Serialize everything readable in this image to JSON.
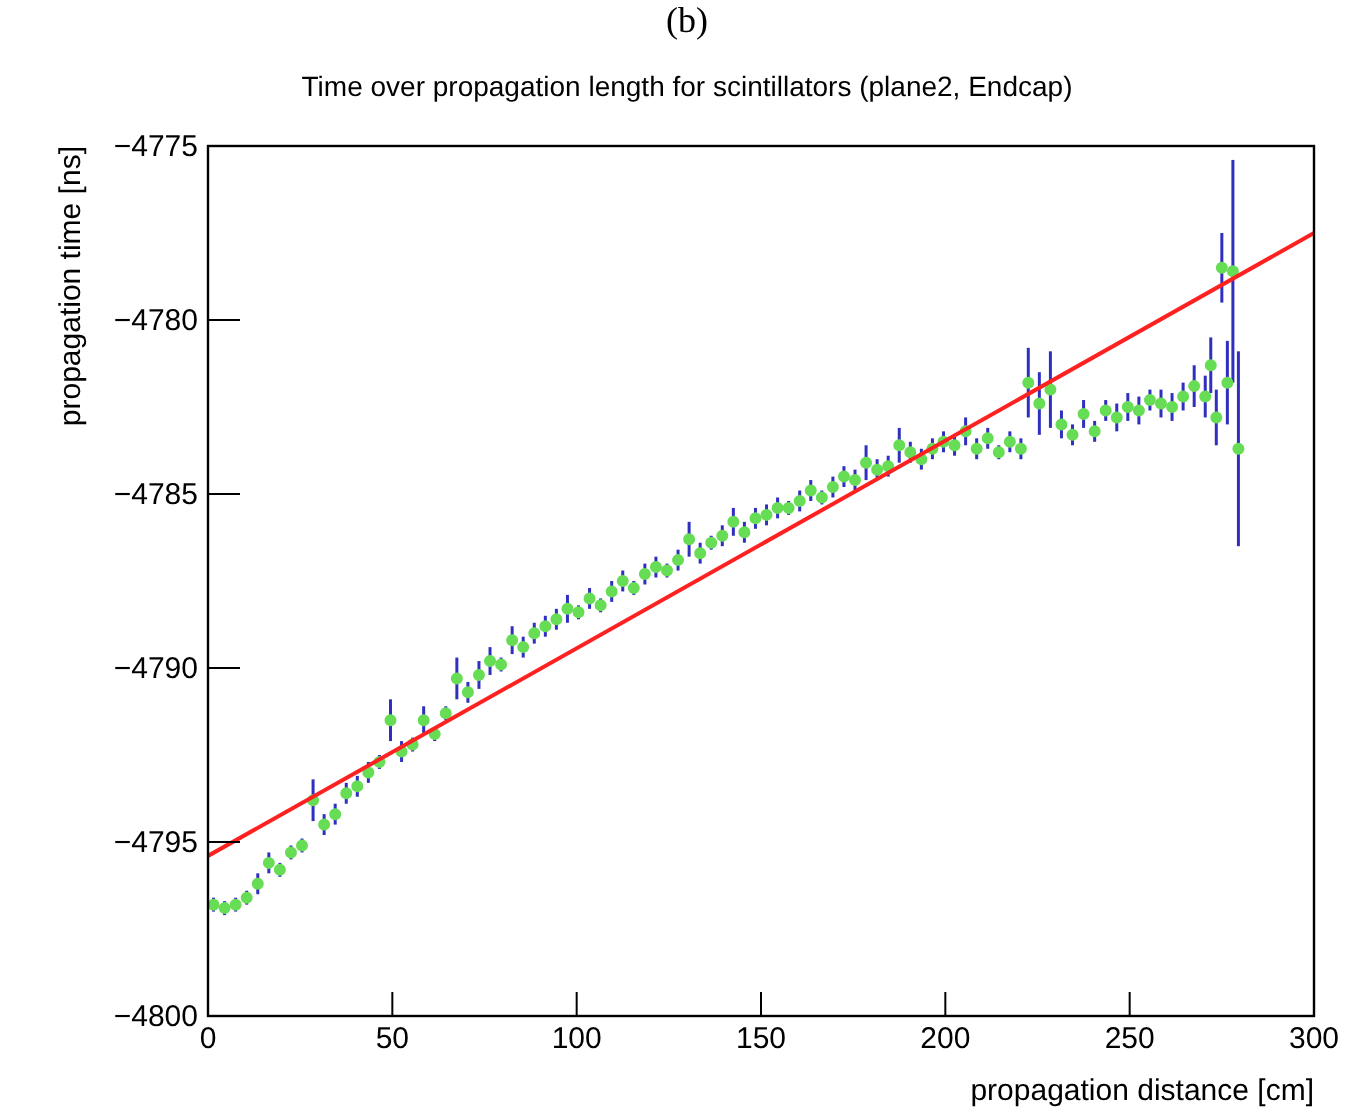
{
  "chart_data": {
    "type": "scatter",
    "title": "Time over propagation length for scintillators (plane2, Endcap)",
    "xlabel": "propagation distance [cm]",
    "ylabel": "propagation time [ns]",
    "annotations": [
      "(b)"
    ],
    "xlim": [
      0,
      300
    ],
    "ylim": [
      -4800,
      -4775
    ],
    "xticks": [
      0,
      50,
      100,
      150,
      200,
      250,
      300
    ],
    "yticks": [
      -4800,
      -4795,
      -4790,
      -4785,
      -4780,
      -4775
    ],
    "grid": false,
    "series": [
      {
        "marker": "circle",
        "color": "#66dd55",
        "x": [
          1.5,
          4.5,
          7.5,
          10.5,
          13.5,
          16.5,
          19.5,
          22.5,
          25.5,
          28.5,
          31.5,
          34.5,
          37.5,
          40.5,
          43.5,
          46.5,
          49.5,
          52.5,
          55.5,
          58.5,
          61.5,
          64.5,
          67.5,
          70.5,
          73.5,
          76.5,
          79.5,
          82.5,
          85.5,
          88.5,
          91.5,
          94.5,
          97.5,
          100.5,
          103.5,
          106.5,
          109.5,
          112.5,
          115.5,
          118.5,
          121.5,
          124.5,
          127.5,
          130.5,
          133.5,
          136.5,
          139.5,
          142.5,
          145.5,
          148.5,
          151.5,
          154.5,
          157.5,
          160.5,
          163.5,
          166.5,
          169.5,
          172.5,
          175.5,
          178.5,
          181.5,
          184.5,
          187.5,
          190.5,
          193.5,
          196.5,
          199.5,
          202.5,
          205.5,
          208.5,
          211.5,
          214.5,
          217.5,
          220.5,
          222.5,
          225.5,
          228.5,
          231.5,
          234.5,
          237.5,
          240.5,
          243.5,
          246.5,
          249.5,
          252.5,
          255.5,
          258.5,
          261.5,
          264.5,
          267.5,
          270.5,
          272,
          273.5,
          275,
          276.5,
          278,
          279.5
        ],
        "values": [
          -4796.8,
          -4796.9,
          -4796.8,
          -4796.6,
          -4796.2,
          -4795.6,
          -4795.8,
          -4795.3,
          -4795.1,
          -4793.8,
          -4794.5,
          -4794.2,
          -4793.6,
          -4793.4,
          -4793.0,
          -4792.7,
          -4791.5,
          -4792.4,
          -4792.2,
          -4791.5,
          -4791.9,
          -4791.3,
          -4790.3,
          -4790.7,
          -4790.2,
          -4789.8,
          -4789.9,
          -4789.2,
          -4789.4,
          -4789.0,
          -4788.8,
          -4788.6,
          -4788.3,
          -4788.4,
          -4788.0,
          -4788.2,
          -4787.8,
          -4787.5,
          -4787.7,
          -4787.3,
          -4787.1,
          -4787.2,
          -4786.9,
          -4786.3,
          -4786.7,
          -4786.4,
          -4786.2,
          -4785.8,
          -4786.1,
          -4785.7,
          -4785.6,
          -4785.4,
          -4785.4,
          -4785.2,
          -4784.9,
          -4785.1,
          -4784.8,
          -4784.5,
          -4784.6,
          -4784.1,
          -4784.3,
          -4784.2,
          -4783.6,
          -4783.8,
          -4784.0,
          -4783.7,
          -4783.5,
          -4783.6,
          -4783.2,
          -4783.7,
          -4783.4,
          -4783.8,
          -4783.5,
          -4783.7,
          -4781.8,
          -4782.4,
          -4782.0,
          -4783.0,
          -4783.3,
          -4782.7,
          -4783.2,
          -4782.6,
          -4782.8,
          -4782.5,
          -4782.6,
          -4782.3,
          -4782.4,
          -4782.5,
          -4782.2,
          -4781.9,
          -4782.2,
          -4781.3,
          -4782.8,
          -4778.5,
          -4781.8,
          -4778.6,
          -4783.7
        ],
        "errors": [
          0.2,
          0.2,
          0.2,
          0.2,
          0.3,
          0.3,
          0.2,
          0.2,
          0.2,
          0.6,
          0.3,
          0.3,
          0.3,
          0.3,
          0.3,
          0.2,
          0.6,
          0.3,
          0.2,
          0.4,
          0.2,
          0.2,
          0.6,
          0.3,
          0.4,
          0.4,
          0.2,
          0.4,
          0.3,
          0.3,
          0.3,
          0.3,
          0.4,
          0.2,
          0.3,
          0.2,
          0.3,
          0.3,
          0.2,
          0.3,
          0.3,
          0.2,
          0.3,
          0.5,
          0.3,
          0.2,
          0.3,
          0.4,
          0.3,
          0.3,
          0.3,
          0.3,
          0.2,
          0.3,
          0.3,
          0.2,
          0.3,
          0.3,
          0.3,
          0.5,
          0.3,
          0.3,
          0.5,
          0.3,
          0.3,
          0.3,
          0.3,
          0.3,
          0.4,
          0.3,
          0.3,
          0.2,
          0.3,
          0.3,
          1.0,
          0.9,
          1.1,
          0.4,
          0.3,
          0.4,
          0.3,
          0.3,
          0.4,
          0.4,
          0.4,
          0.3,
          0.4,
          0.4,
          0.4,
          0.6,
          0.6,
          0.8,
          0.8,
          1.0,
          1.2,
          3.2,
          2.8
        ]
      },
      {
        "type": "line",
        "color": "#ff2020",
        "x": [
          0,
          300
        ],
        "values": [
          -4795.4,
          -4777.5
        ]
      }
    ]
  }
}
